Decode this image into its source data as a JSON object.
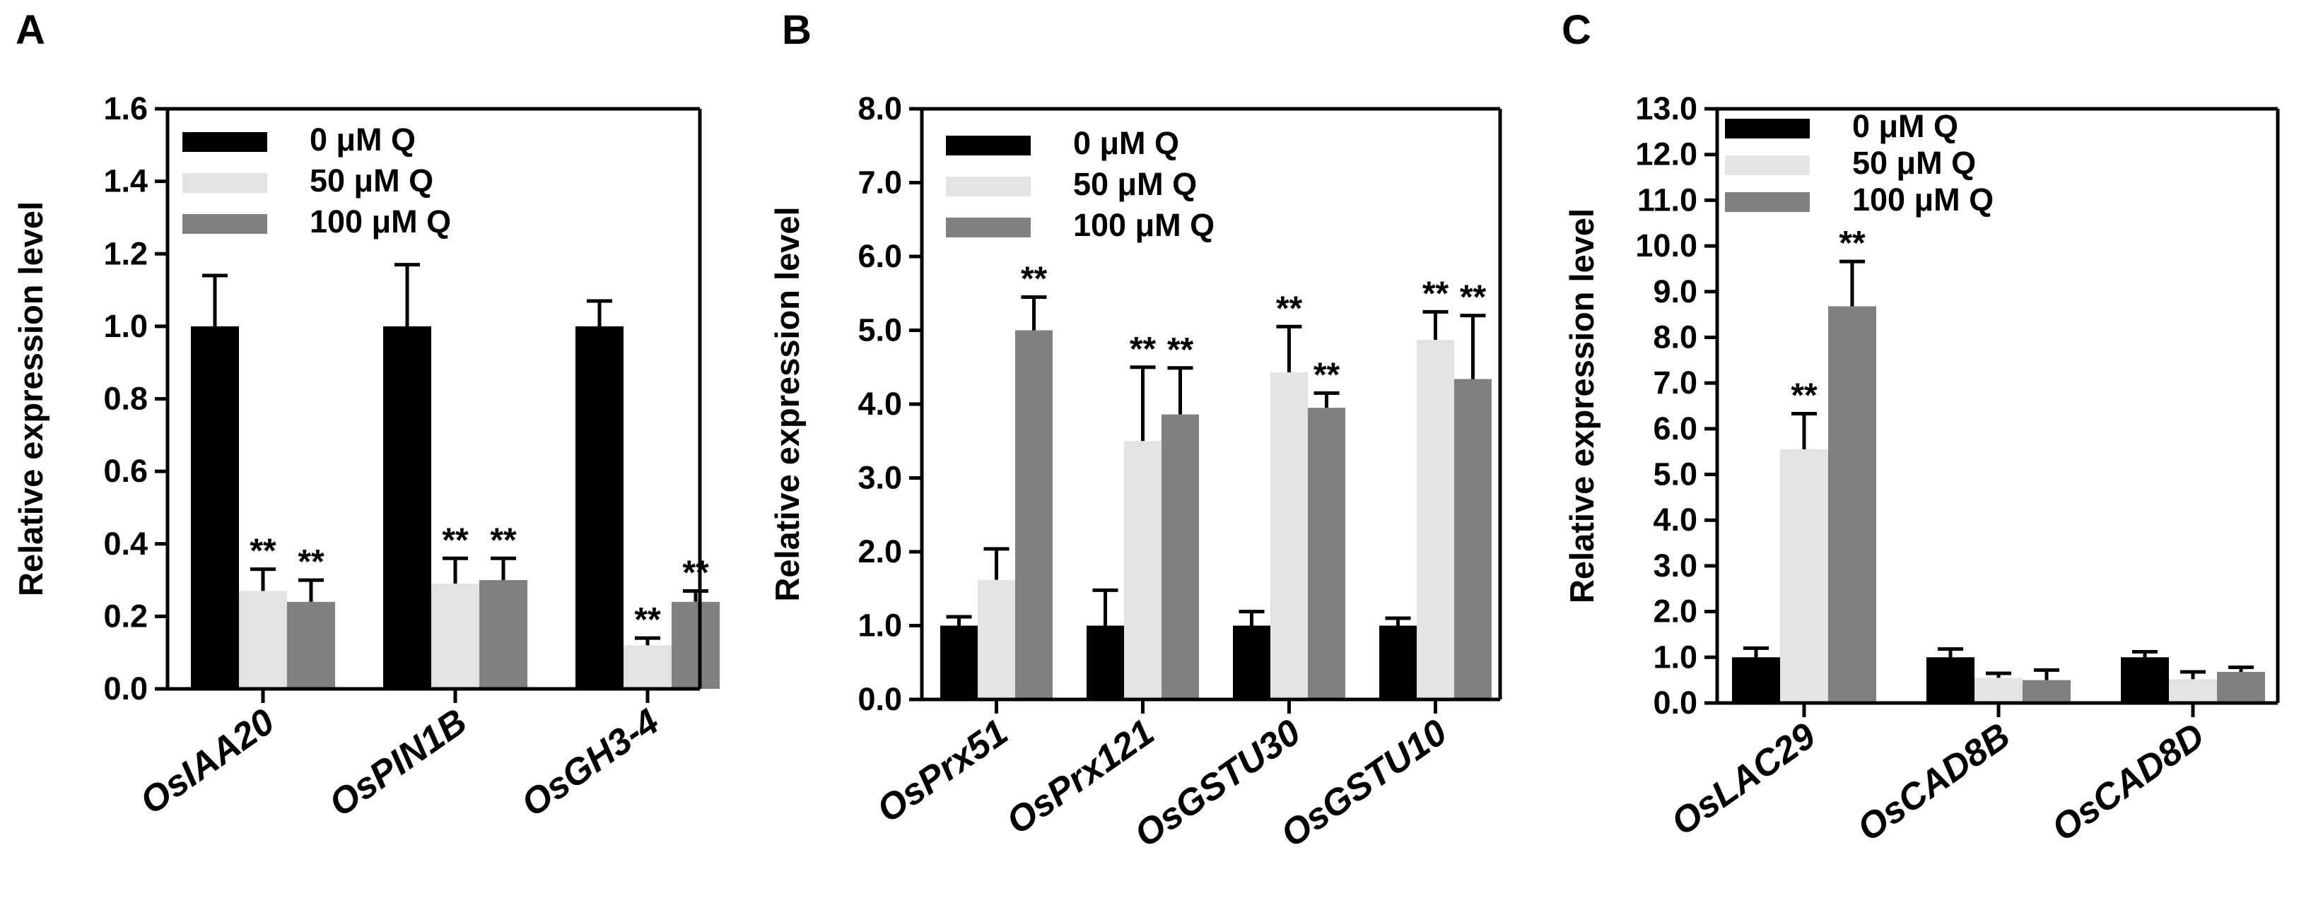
{
  "series_colors": [
    "#000000",
    "#e3e3e3",
    "#808080"
  ],
  "chart_data": [
    {
      "type": "bar",
      "panel": "A",
      "ylabel": "Relative expression level",
      "ylim": [
        0,
        1.6
      ],
      "yticks": [
        "0.0",
        "0.2",
        "0.4",
        "0.6",
        "0.8",
        "1.0",
        "1.2",
        "1.4",
        "1.6"
      ],
      "categories": [
        "OsIAA20",
        "OsPIN1B",
        "OsGH3-4"
      ],
      "legend": [
        "0 μM Q",
        "50 μM Q",
        "100 μM Q"
      ],
      "series": [
        {
          "name": "0 μM Q",
          "values": [
            1.0,
            1.0,
            1.0
          ],
          "errors": [
            0.14,
            0.17,
            0.07
          ],
          "sig": [
            "",
            "",
            ""
          ]
        },
        {
          "name": "50 μM Q",
          "values": [
            0.27,
            0.29,
            0.12
          ],
          "errors": [
            0.06,
            0.07,
            0.02
          ],
          "sig": [
            "**",
            "**",
            "**"
          ]
        },
        {
          "name": "100 μM Q",
          "values": [
            0.24,
            0.3,
            0.24
          ],
          "errors": [
            0.06,
            0.06,
            0.03
          ],
          "sig": [
            "**",
            "**",
            "**"
          ]
        }
      ]
    },
    {
      "type": "bar",
      "panel": "B",
      "ylabel": "Relative expression level",
      "ylim": [
        0,
        8
      ],
      "yticks": [
        "0.0",
        "1.0",
        "2.0",
        "3.0",
        "4.0",
        "5.0",
        "6.0",
        "7.0",
        "8.0"
      ],
      "categories": [
        "OsPrx51",
        "OsPrx121",
        "OsGSTU30",
        "OsGSTU10"
      ],
      "legend": [
        "0 μM Q",
        "50 μM Q",
        "100 μM Q"
      ],
      "series": [
        {
          "name": "0 μM Q",
          "values": [
            1.0,
            1.0,
            1.0,
            1.0
          ],
          "errors": [
            0.12,
            0.48,
            0.19,
            0.1
          ],
          "sig": [
            "",
            "",
            "",
            ""
          ]
        },
        {
          "name": "50 μM Q",
          "values": [
            1.62,
            3.5,
            4.43,
            4.87
          ],
          "errors": [
            0.42,
            1.0,
            0.62,
            0.38
          ],
          "sig": [
            "",
            "**",
            "**",
            "**"
          ]
        },
        {
          "name": "100 μM Q",
          "values": [
            5.0,
            3.86,
            3.95,
            4.34
          ],
          "errors": [
            0.45,
            0.63,
            0.2,
            0.86
          ],
          "sig": [
            "**",
            "**",
            "**",
            "**"
          ]
        }
      ]
    },
    {
      "type": "bar",
      "panel": "C",
      "ylabel": "Relative expression level",
      "ylim": [
        0,
        13
      ],
      "yticks": [
        "0.0",
        "1.0",
        "2.0",
        "3.0",
        "4.0",
        "5.0",
        "6.0",
        "7.0",
        "8.0",
        "9.0",
        "10.0",
        "11.0",
        "12.0",
        "13.0"
      ],
      "categories": [
        "OsLAC29",
        "OsCAD8B",
        "OsCAD8D"
      ],
      "legend": [
        "0 μM Q",
        "50 μM Q",
        "100 μM Q"
      ],
      "series": [
        {
          "name": "0 μM Q",
          "values": [
            1.0,
            1.0,
            1.0
          ],
          "errors": [
            0.2,
            0.18,
            0.12
          ],
          "sig": [
            "",
            "",
            ""
          ]
        },
        {
          "name": "50 μM Q",
          "values": [
            5.55,
            0.55,
            0.52
          ],
          "errors": [
            0.78,
            0.1,
            0.16
          ],
          "sig": [
            "**",
            "",
            ""
          ]
        },
        {
          "name": "100 μM Q",
          "values": [
            8.68,
            0.5,
            0.68
          ],
          "errors": [
            0.98,
            0.22,
            0.1
          ],
          "sig": [
            "**",
            "",
            ""
          ]
        }
      ]
    }
  ]
}
